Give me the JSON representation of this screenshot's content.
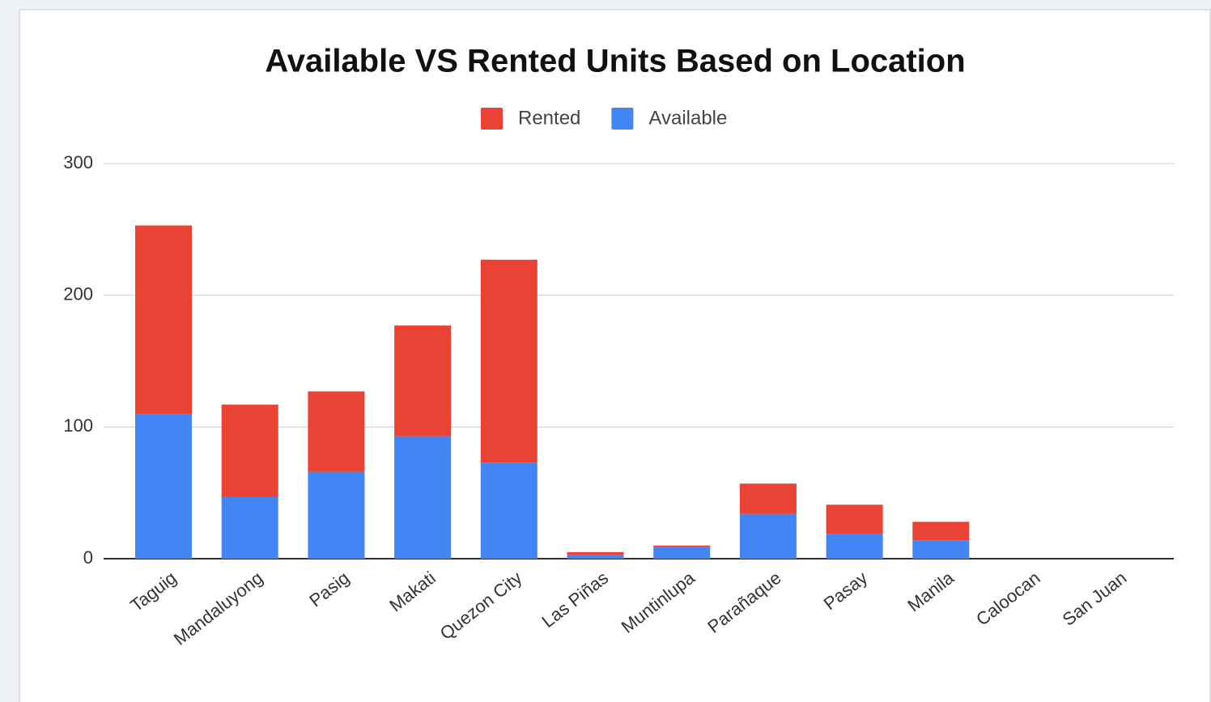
{
  "chart_data": {
    "type": "stacked_bar",
    "title": "Available VS Rented Units Based on Location",
    "categories": [
      "Taguig",
      "Mandaluyong",
      "Pasig",
      "Makati",
      "Quezon City",
      "Las Piñas",
      "Muntinlupa",
      "Parañaque",
      "Pasay",
      "Manila",
      "Caloocan",
      "San Juan"
    ],
    "series": [
      {
        "name": "Rented",
        "color": "#ea4335",
        "values": [
          143,
          70,
          61,
          84,
          154,
          2,
          1,
          23,
          22,
          14,
          0,
          0
        ]
      },
      {
        "name": "Available",
        "color": "#4285f4",
        "values": [
          110,
          47,
          66,
          93,
          73,
          3,
          9,
          34,
          19,
          14,
          0,
          0
        ]
      }
    ],
    "ylim": [
      0,
      300
    ],
    "yticks": [
      0,
      100,
      200,
      300
    ],
    "grid": true,
    "legend": "top"
  }
}
